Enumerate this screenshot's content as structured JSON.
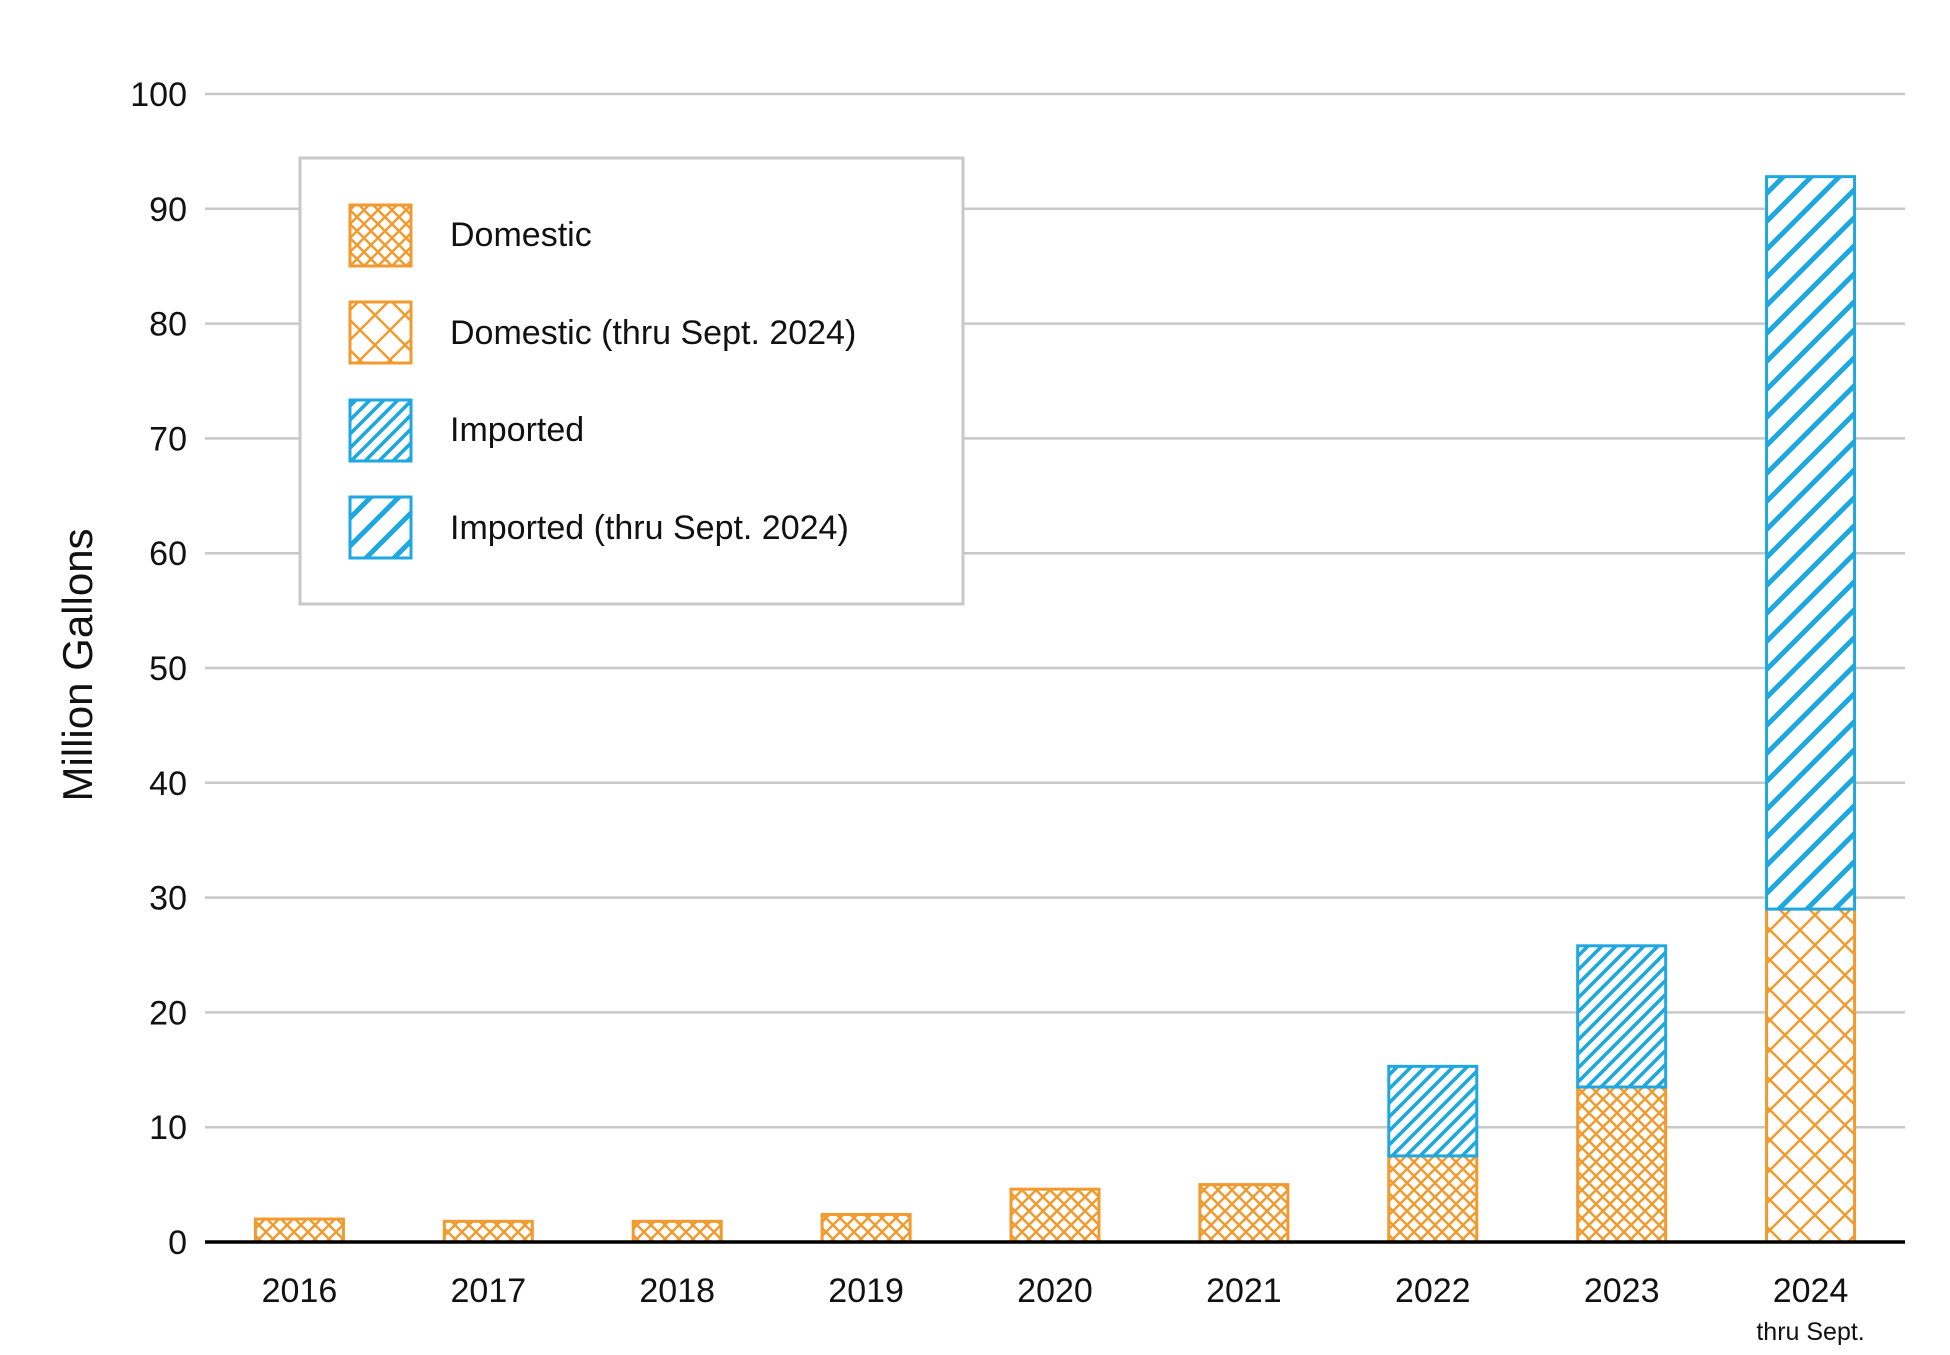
{
  "colors": {
    "domestic": "#F29A2E",
    "imported": "#1EA7E1",
    "grid": "#C8C8C8",
    "axis": "#000000",
    "legend_border": "#C8C8C8"
  },
  "chart_data": {
    "type": "bar",
    "stacked": true,
    "ylabel": "Million Gallons",
    "xlabel": "",
    "ylim": [
      0,
      100
    ],
    "yticks": [
      0,
      10,
      20,
      30,
      40,
      50,
      60,
      70,
      80,
      90,
      100
    ],
    "grid": true,
    "legend_position": "top-left",
    "categories": [
      "2016",
      "2017",
      "2018",
      "2019",
      "2020",
      "2021",
      "2022",
      "2023",
      "2024"
    ],
    "category_sublabels": [
      "",
      "",
      "",
      "",
      "",
      "",
      "",
      "",
      "thru Sept."
    ],
    "series": [
      {
        "name": "Domestic",
        "color": "#F29A2E",
        "pattern": "crosshatch-dense",
        "values": [
          2.0,
          1.8,
          1.8,
          2.4,
          4.6,
          5.0,
          7.5,
          13.5,
          null
        ]
      },
      {
        "name": "Domestic (thru Sept. 2024)",
        "color": "#F29A2E",
        "pattern": "crosshatch-open",
        "values": [
          null,
          null,
          null,
          null,
          null,
          null,
          null,
          null,
          29.0
        ]
      },
      {
        "name": "Imported",
        "color": "#1EA7E1",
        "pattern": "diagonal-dense",
        "values": [
          null,
          null,
          null,
          null,
          null,
          null,
          7.8,
          12.3,
          null
        ]
      },
      {
        "name": "Imported (thru Sept. 2024)",
        "color": "#1EA7E1",
        "pattern": "diagonal-open",
        "values": [
          null,
          null,
          null,
          null,
          null,
          null,
          null,
          null,
          63.8
        ]
      }
    ]
  }
}
